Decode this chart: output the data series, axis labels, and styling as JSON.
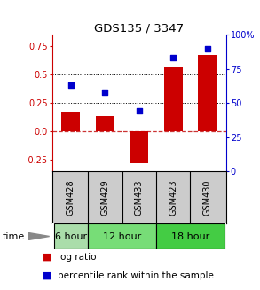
{
  "title": "GDS135 / 3347",
  "samples": [
    "GSM428",
    "GSM429",
    "GSM433",
    "GSM423",
    "GSM430"
  ],
  "log_ratios": [
    0.17,
    0.13,
    -0.28,
    0.57,
    0.67
  ],
  "percentile_ranks": [
    63,
    58,
    44,
    83,
    90
  ],
  "ylim_left": [
    -0.35,
    0.85
  ],
  "ylim_right": [
    0,
    100
  ],
  "yticks_left": [
    -0.25,
    0.0,
    0.25,
    0.5,
    0.75
  ],
  "yticks_right": [
    0,
    25,
    50,
    75,
    100
  ],
  "bar_color": "#cc0000",
  "square_color": "#0000cc",
  "hline_zero_color": "#cc3333",
  "hline_dot_color": "#000000",
  "time_groups": [
    {
      "label": "6 hour",
      "start": 0,
      "end": 1,
      "color": "#aaddaa"
    },
    {
      "label": "12 hour",
      "start": 1,
      "end": 3,
      "color": "#77dd77"
    },
    {
      "label": "18 hour",
      "start": 3,
      "end": 5,
      "color": "#44cc44"
    }
  ],
  "time_label": "time",
  "legend_log_ratio": "log ratio",
  "legend_pct": "percentile rank within the sample",
  "ylabel_left_color": "#cc0000",
  "ylabel_right_color": "#0000cc",
  "bg_color": "#ffffff",
  "gsm_bg_color": "#cccccc",
  "bar_width": 0.55
}
